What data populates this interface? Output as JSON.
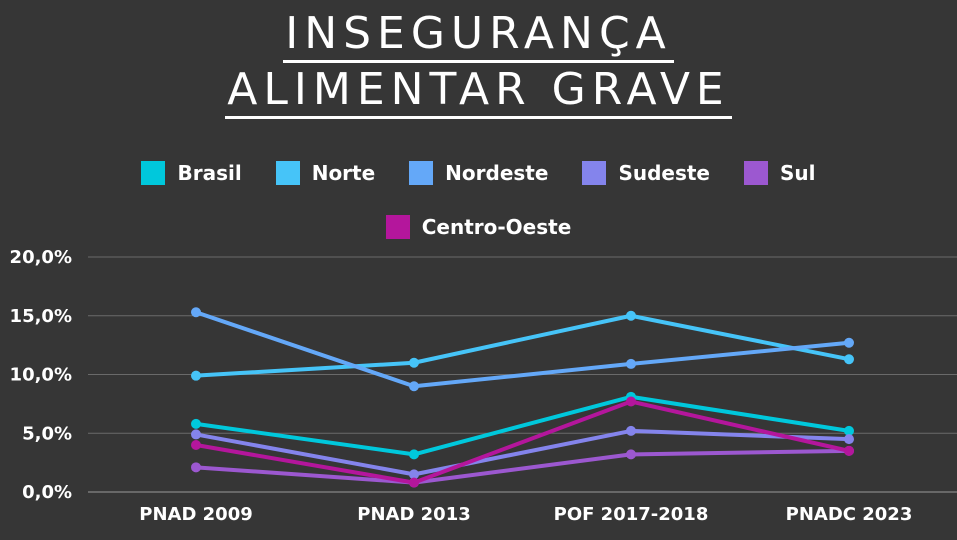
{
  "title": {
    "line1": "INSEGURANÇA",
    "line2": "ALIMENTAR GRAVE"
  },
  "chart_data": {
    "type": "line",
    "title": "INSEGURANÇA ALIMENTAR GRAVE",
    "categories": [
      "PNAD 2009",
      "PNAD 2013",
      "POF 2017-2018",
      "PNADC 2023"
    ],
    "ylim": [
      0,
      20
    ],
    "yticks": [
      "0,0%",
      "5,0%",
      "10,0%",
      "15,0%",
      "20,0%"
    ],
    "grid": true,
    "legend_position": "top",
    "series": [
      {
        "name": "Brasil",
        "color": "#00C8DC",
        "values": [
          5.8,
          3.2,
          8.1,
          5.2
        ]
      },
      {
        "name": "Norte",
        "color": "#46C4F8",
        "values": [
          9.9,
          11.0,
          15.0,
          11.3
        ]
      },
      {
        "name": "Nordeste",
        "color": "#64A8F8",
        "values": [
          15.3,
          9.0,
          10.9,
          12.7
        ]
      },
      {
        "name": "Sudeste",
        "color": "#8484EC",
        "values": [
          4.9,
          1.5,
          5.2,
          4.5
        ]
      },
      {
        "name": "Sul",
        "color": "#9C58D0",
        "values": [
          2.1,
          0.8,
          3.2,
          3.5
        ]
      },
      {
        "name": "Centro-Oeste",
        "color": "#B4169C",
        "values": [
          4.0,
          0.8,
          7.7,
          3.5
        ]
      }
    ]
  }
}
